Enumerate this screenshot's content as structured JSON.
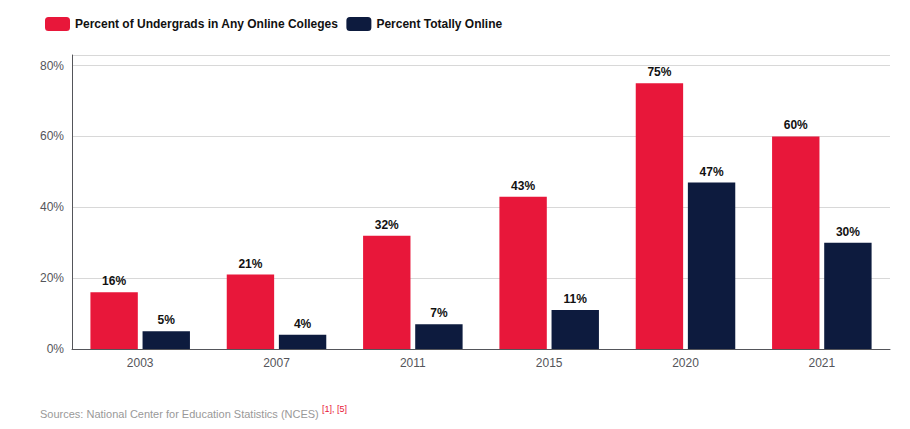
{
  "chart_data": {
    "type": "bar",
    "categories": [
      "2003",
      "2007",
      "2011",
      "2015",
      "2020",
      "2021"
    ],
    "series": [
      {
        "name": "Percent of Undergrads in Any Online Colleges",
        "color": "#E8173A",
        "values": [
          16,
          21,
          32,
          43,
          75,
          60
        ],
        "value_labels": [
          "16%",
          "21%",
          "32%",
          "43%",
          "75%",
          "60%"
        ]
      },
      {
        "name": "Percent Totally Online",
        "color": "#0D1B3E",
        "values": [
          5,
          4,
          7,
          11,
          47,
          30
        ],
        "value_labels": [
          "5%",
          "4%",
          "7%",
          "11%",
          "47%",
          "30%"
        ]
      }
    ],
    "ylim": [
      0,
      83
    ],
    "yticks": [
      {
        "value": 0,
        "label": "0%"
      },
      {
        "value": 20,
        "label": "20%"
      },
      {
        "value": 40,
        "label": "40%"
      },
      {
        "value": 60,
        "label": "60%"
      },
      {
        "value": 80,
        "label": "80%"
      }
    ],
    "grid": true,
    "legend": "upper left",
    "data_labels": true,
    "annotations": [
      "Sources: National Center for Education Statistics (NCES)",
      "[1], [5]"
    ]
  }
}
